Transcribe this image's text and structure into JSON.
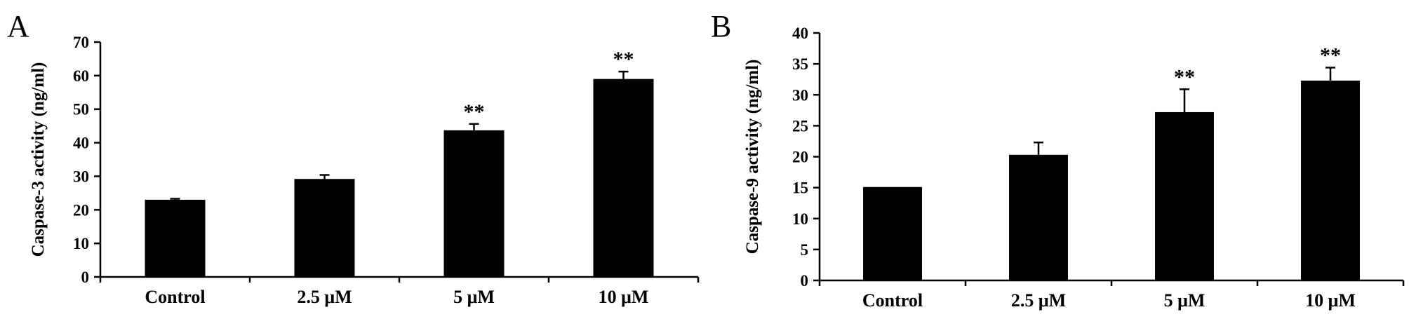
{
  "chart_data": [
    {
      "type": "bar",
      "panel_label": "A",
      "categories": [
        "Control",
        "2.5 μM",
        "5 μM",
        "10 μM"
      ],
      "values": [
        23,
        29.2,
        43.7,
        59
      ],
      "error": [
        0.3,
        1.2,
        1.9,
        2.2
      ],
      "significance": [
        "",
        "",
        "**",
        "**"
      ],
      "ylabel": "Caspase-3 activity (ng/ml)",
      "ylim": [
        0,
        70
      ],
      "yticks": [
        0,
        10,
        20,
        30,
        40,
        50,
        60,
        70
      ],
      "grid": false,
      "bar_color": "#000000"
    },
    {
      "type": "bar",
      "panel_label": "B",
      "categories": [
        "Control",
        "2.5 μM",
        "5 μM",
        "10 μM"
      ],
      "values": [
        15.1,
        20.3,
        27.2,
        32.3
      ],
      "error": [
        0,
        2,
        3.7,
        2.1
      ],
      "significance": [
        "",
        "",
        "**",
        "**"
      ],
      "ylabel": "Caspase-9 activity (ng/ml)",
      "ylim": [
        0,
        40
      ],
      "yticks": [
        0,
        5,
        10,
        15,
        20,
        25,
        30,
        35,
        40
      ],
      "grid": false,
      "bar_color": "#000000"
    }
  ]
}
